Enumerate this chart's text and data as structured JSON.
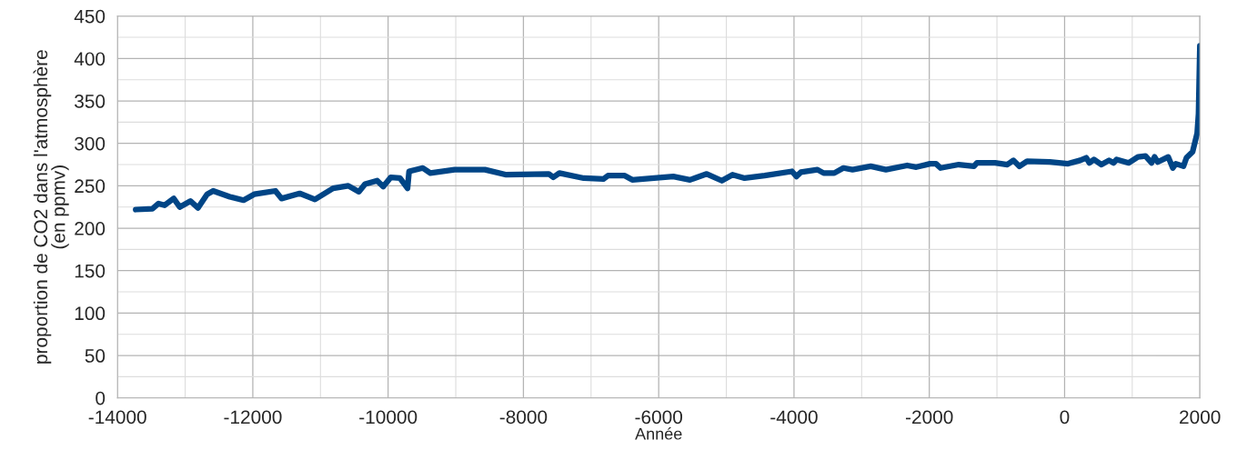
{
  "chart_data": {
    "type": "line",
    "xlabel": "Année",
    "ylabel": "proportion de CO2 dans l'atmosphère\n(en ppmv)",
    "x": [
      -13731,
      -13484,
      -13394,
      -13304,
      -13169,
      -13080,
      -12923,
      -12811,
      -12676,
      -12586,
      -12339,
      -12137,
      -11980,
      -11666,
      -11576,
      -11306,
      -11082,
      -10813,
      -10589,
      -10431,
      -10341,
      -10162,
      -10072,
      -9960,
      -9825,
      -9713,
      -9690,
      -9488,
      -9376,
      -9017,
      -8568,
      -8253,
      -7625,
      -7558,
      -7468,
      -7108,
      -6818,
      -6750,
      -6502,
      -6391,
      -5785,
      -5538,
      -5290,
      -5067,
      -4909,
      -4730,
      -4434,
      -4030,
      -3963,
      -3899,
      -3653,
      -3562,
      -3405,
      -3270,
      -3135,
      -2866,
      -2641,
      -2327,
      -2192,
      -1990,
      -1901,
      -1834,
      -1564,
      -1340,
      -1295,
      -1026,
      -846,
      -756,
      -667,
      -555,
      -218,
      51,
      231,
      321,
      366,
      433,
      545,
      657,
      725,
      770,
      949,
      1084,
      1196,
      1286,
      1330,
      1376,
      1532,
      1600,
      1645,
      1757,
      1802,
      1892,
      1960,
      1980,
      2000
    ],
    "series": [
      {
        "color": "#004586",
        "values": [
          222,
          223,
          229,
          227,
          235,
          225,
          232,
          224,
          240,
          244,
          237,
          233,
          240,
          244,
          235,
          241,
          234,
          247,
          250,
          243,
          252,
          256,
          249,
          260,
          259,
          247,
          267,
          271,
          265,
          269,
          269,
          263,
          264,
          260,
          265,
          259,
          258,
          262,
          262,
          257,
          261,
          257,
          264,
          256,
          263,
          259,
          262,
          267,
          261,
          266,
          269,
          265,
          265,
          271,
          269,
          273,
          269,
          274,
          272,
          276,
          276,
          271,
          275,
          273,
          277,
          277,
          275,
          280,
          273,
          279,
          278,
          276,
          280,
          283,
          277,
          281,
          275,
          280,
          277,
          281,
          277,
          284,
          285,
          277,
          284,
          278,
          284,
          271,
          276,
          273,
          283,
          290,
          312,
          335,
          415
        ]
      }
    ],
    "xlim": [
      -14000,
      2000
    ],
    "xticks": [
      -14000,
      -12000,
      -10000,
      -8000,
      -6000,
      -4000,
      -2000,
      0,
      2000
    ],
    "ylim": [
      0,
      450
    ],
    "yticks": [
      0,
      50,
      100,
      150,
      200,
      250,
      300,
      350,
      400,
      450
    ],
    "grid": true,
    "legend": false,
    "marker": "none",
    "line_style": "solid"
  }
}
